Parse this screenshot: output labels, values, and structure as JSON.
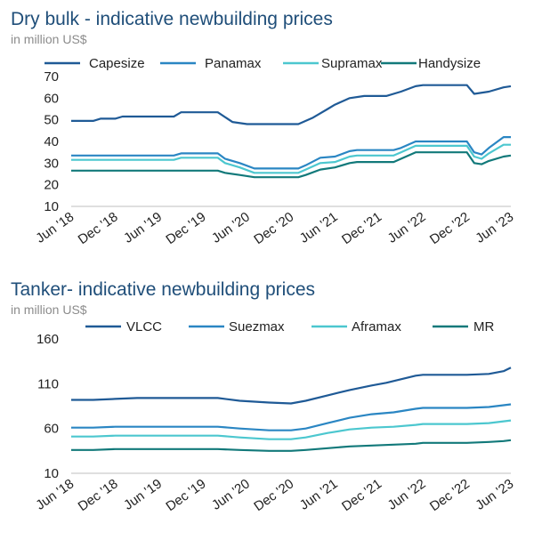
{
  "chart_data": [
    {
      "type": "line",
      "title": "Dry bulk - indicative newbuilding prices",
      "subtitle": "in million US$",
      "ylim": [
        10,
        70
      ],
      "yticks": [
        10,
        20,
        30,
        40,
        50,
        60,
        70
      ],
      "x_ticks": [
        "Jun '18",
        "Dec '18",
        "Jun '19",
        "Dec '19",
        "Jun '20",
        "Dec '20",
        "Jun '21",
        "Dec '21",
        "Jun '22",
        "Dec '22",
        "Jun '23"
      ],
      "grid": false,
      "legend_position": "top",
      "series": [
        {
          "name": "Capesize",
          "color": "#1f5a96",
          "points": [
            [
              "2018-06",
              49.5
            ],
            [
              "2018-09",
              49.5
            ],
            [
              "2018-10",
              50.5
            ],
            [
              "2018-12",
              50.5
            ],
            [
              "2019-01",
              51.5
            ],
            [
              "2019-08",
              51.5
            ],
            [
              "2019-09",
              53.5
            ],
            [
              "2020-02",
              53.5
            ],
            [
              "2020-04",
              49
            ],
            [
              "2020-06",
              48
            ],
            [
              "2021-01",
              48
            ],
            [
              "2021-03",
              51
            ],
            [
              "2021-05",
              55
            ],
            [
              "2021-06",
              57
            ],
            [
              "2021-08",
              60
            ],
            [
              "2021-10",
              61
            ],
            [
              "2022-01",
              61
            ],
            [
              "2022-03",
              63
            ],
            [
              "2022-05",
              65.5
            ],
            [
              "2022-06",
              66
            ],
            [
              "2022-12",
              66
            ],
            [
              "2023-01",
              62
            ],
            [
              "2023-03",
              63
            ],
            [
              "2023-05",
              65
            ],
            [
              "2023-06",
              65.5
            ]
          ]
        },
        {
          "name": "Panamax",
          "color": "#2a86c3",
          "points": [
            [
              "2018-06",
              33.5
            ],
            [
              "2019-08",
              33.5
            ],
            [
              "2019-09",
              34.5
            ],
            [
              "2020-02",
              34.5
            ],
            [
              "2020-03",
              32
            ],
            [
              "2020-05",
              30
            ],
            [
              "2020-07",
              27.5
            ],
            [
              "2021-01",
              27.5
            ],
            [
              "2021-02",
              29
            ],
            [
              "2021-04",
              32.5
            ],
            [
              "2021-06",
              33
            ],
            [
              "2021-08",
              35.5
            ],
            [
              "2021-09",
              36
            ],
            [
              "2022-02",
              36
            ],
            [
              "2022-03",
              37
            ],
            [
              "2022-05",
              40
            ],
            [
              "2022-12",
              40
            ],
            [
              "2023-01",
              35
            ],
            [
              "2023-02",
              34
            ],
            [
              "2023-03",
              37
            ],
            [
              "2023-05",
              42
            ],
            [
              "2023-06",
              42
            ]
          ]
        },
        {
          "name": "Supramax",
          "color": "#4cc7cf",
          "points": [
            [
              "2018-06",
              31.5
            ],
            [
              "2019-08",
              31.5
            ],
            [
              "2019-09",
              32.5
            ],
            [
              "2020-02",
              32.5
            ],
            [
              "2020-03",
              30
            ],
            [
              "2020-05",
              28
            ],
            [
              "2020-07",
              25.5
            ],
            [
              "2021-01",
              25.5
            ],
            [
              "2021-02",
              27
            ],
            [
              "2021-04",
              30
            ],
            [
              "2021-06",
              30.5
            ],
            [
              "2021-08",
              33
            ],
            [
              "2021-09",
              33.5
            ],
            [
              "2022-02",
              33.5
            ],
            [
              "2022-03",
              35
            ],
            [
              "2022-05",
              38
            ],
            [
              "2022-12",
              38
            ],
            [
              "2023-01",
              33
            ],
            [
              "2023-02",
              32
            ],
            [
              "2023-03",
              34.5
            ],
            [
              "2023-05",
              38.5
            ],
            [
              "2023-06",
              38.5
            ]
          ]
        },
        {
          "name": "Handysize",
          "color": "#12797a",
          "points": [
            [
              "2018-06",
              26.5
            ],
            [
              "2020-02",
              26.5
            ],
            [
              "2020-03",
              25.5
            ],
            [
              "2020-05",
              24.5
            ],
            [
              "2020-07",
              23.5
            ],
            [
              "2021-01",
              23.5
            ],
            [
              "2021-02",
              24.5
            ],
            [
              "2021-04",
              27
            ],
            [
              "2021-06",
              28
            ],
            [
              "2021-08",
              30
            ],
            [
              "2021-09",
              30.5
            ],
            [
              "2022-02",
              30.5
            ],
            [
              "2022-03",
              32
            ],
            [
              "2022-05",
              35
            ],
            [
              "2022-12",
              35
            ],
            [
              "2023-01",
              30
            ],
            [
              "2023-02",
              29.5
            ],
            [
              "2023-03",
              31
            ],
            [
              "2023-05",
              33
            ],
            [
              "2023-06",
              33.5
            ]
          ]
        }
      ]
    },
    {
      "type": "line",
      "title": "Tanker- indicative newbuilding prices",
      "subtitle": "in million US$",
      "ylim": [
        10,
        160
      ],
      "yticks": [
        10,
        60,
        110,
        160
      ],
      "x_ticks": [
        "Jun '18",
        "Dec '18",
        "Jun '19",
        "Dec '19",
        "Jun '20",
        "Dec '20",
        "Jun '21",
        "Dec '21",
        "Jun '22",
        "Dec '22",
        "Jun '23"
      ],
      "grid": false,
      "legend_position": "top",
      "series": [
        {
          "name": "VLCC",
          "color": "#1f5a96",
          "points": [
            [
              "2018-06",
              92
            ],
            [
              "2018-09",
              92
            ],
            [
              "2018-12",
              93
            ],
            [
              "2019-03",
              94
            ],
            [
              "2020-02",
              94
            ],
            [
              "2020-05",
              91
            ],
            [
              "2020-09",
              89
            ],
            [
              "2020-12",
              88
            ],
            [
              "2021-02",
              91
            ],
            [
              "2021-05",
              97
            ],
            [
              "2021-08",
              103
            ],
            [
              "2021-11",
              108
            ],
            [
              "2022-01",
              111
            ],
            [
              "2022-03",
              115
            ],
            [
              "2022-05",
              119
            ],
            [
              "2022-06",
              120
            ],
            [
              "2022-12",
              120
            ],
            [
              "2023-03",
              121
            ],
            [
              "2023-05",
              124
            ],
            [
              "2023-06",
              128
            ]
          ]
        },
        {
          "name": "Suezmax",
          "color": "#2a86c3",
          "points": [
            [
              "2018-06",
              61
            ],
            [
              "2018-09",
              61
            ],
            [
              "2018-12",
              62
            ],
            [
              "2020-02",
              62
            ],
            [
              "2020-05",
              60
            ],
            [
              "2020-09",
              58
            ],
            [
              "2020-12",
              58
            ],
            [
              "2021-02",
              60
            ],
            [
              "2021-05",
              66
            ],
            [
              "2021-08",
              72
            ],
            [
              "2021-11",
              76
            ],
            [
              "2022-02",
              78
            ],
            [
              "2022-05",
              82
            ],
            [
              "2022-06",
              83
            ],
            [
              "2022-12",
              83
            ],
            [
              "2023-03",
              84
            ],
            [
              "2023-05",
              86
            ],
            [
              "2023-06",
              87
            ]
          ]
        },
        {
          "name": "Aframax",
          "color": "#4cc7cf",
          "points": [
            [
              "2018-06",
              51
            ],
            [
              "2018-09",
              51
            ],
            [
              "2018-12",
              52
            ],
            [
              "2020-02",
              52
            ],
            [
              "2020-05",
              50
            ],
            [
              "2020-09",
              48
            ],
            [
              "2020-12",
              48
            ],
            [
              "2021-02",
              50
            ],
            [
              "2021-05",
              55
            ],
            [
              "2021-08",
              59
            ],
            [
              "2021-11",
              61
            ],
            [
              "2022-02",
              62
            ],
            [
              "2022-05",
              64
            ],
            [
              "2022-06",
              65
            ],
            [
              "2022-12",
              65
            ],
            [
              "2023-03",
              66
            ],
            [
              "2023-05",
              68
            ],
            [
              "2023-06",
              69
            ]
          ]
        },
        {
          "name": "MR",
          "color": "#12797a",
          "points": [
            [
              "2018-06",
              36
            ],
            [
              "2018-09",
              36
            ],
            [
              "2018-12",
              37
            ],
            [
              "2020-02",
              37
            ],
            [
              "2020-05",
              36
            ],
            [
              "2020-09",
              35
            ],
            [
              "2020-12",
              35
            ],
            [
              "2021-02",
              36
            ],
            [
              "2021-05",
              38
            ],
            [
              "2021-08",
              40
            ],
            [
              "2021-11",
              41
            ],
            [
              "2022-02",
              42
            ],
            [
              "2022-05",
              43
            ],
            [
              "2022-06",
              44
            ],
            [
              "2022-12",
              44
            ],
            [
              "2023-03",
              45
            ],
            [
              "2023-05",
              46
            ],
            [
              "2023-06",
              47
            ]
          ]
        }
      ]
    }
  ]
}
